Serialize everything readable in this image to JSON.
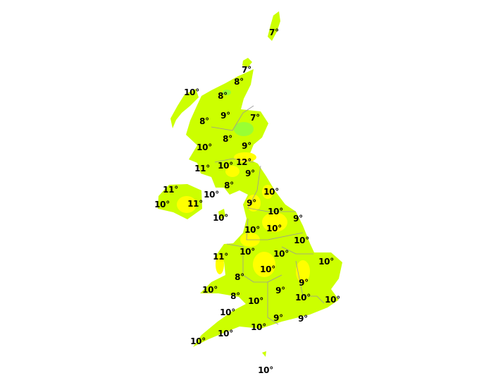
{
  "colors": {
    "base": "#ccff00",
    "warm": "#ffff00",
    "cool": "#99ff33",
    "border": "#999999",
    "background": "#ffffff"
  },
  "temperatures": [
    {
      "region": "shetland",
      "temp": "7°"
    },
    {
      "region": "orkney",
      "temp": "7°"
    },
    {
      "region": "caithness",
      "temp": "8°"
    },
    {
      "region": "western-isles",
      "temp": "10°"
    },
    {
      "region": "sutherland",
      "temp": "8°"
    },
    {
      "region": "highlands",
      "temp": "9°"
    },
    {
      "region": "aberdeenshire",
      "temp": "7°"
    },
    {
      "region": "skye",
      "temp": "8°"
    },
    {
      "region": "perthshire",
      "temp": "8°"
    },
    {
      "region": "fife",
      "temp": "9°"
    },
    {
      "region": "argyll",
      "temp": "10°"
    },
    {
      "region": "kintyre",
      "temp": "11°"
    },
    {
      "region": "glasgow",
      "temp": "10°"
    },
    {
      "region": "borders",
      "temp": "12°"
    },
    {
      "region": "northumberland",
      "temp": "9°"
    },
    {
      "region": "dumfries",
      "temp": "8°"
    },
    {
      "region": "antrim",
      "temp": "11°"
    },
    {
      "region": "cumbria-coast",
      "temp": "10°"
    },
    {
      "region": "north-yorkshire-coast",
      "temp": "10°"
    },
    {
      "region": "fermanagh",
      "temp": "10°"
    },
    {
      "region": "down",
      "temp": "11°"
    },
    {
      "region": "lake-district",
      "temp": "9°"
    },
    {
      "region": "north-yorkshire",
      "temp": "10°"
    },
    {
      "region": "isle-of-man",
      "temp": "10°"
    },
    {
      "region": "east-yorkshire",
      "temp": "9°"
    },
    {
      "region": "lancashire",
      "temp": "10°"
    },
    {
      "region": "south-yorkshire",
      "temp": "10°"
    },
    {
      "region": "lincolnshire",
      "temp": "10°"
    },
    {
      "region": "west-wales",
      "temp": "11°"
    },
    {
      "region": "north-wales-border",
      "temp": "10°"
    },
    {
      "region": "east-midlands",
      "temp": "10°"
    },
    {
      "region": "norfolk",
      "temp": "10°"
    },
    {
      "region": "west-midlands",
      "temp": "10°"
    },
    {
      "region": "mid-wales",
      "temp": "8°"
    },
    {
      "region": "essex",
      "temp": "9°"
    },
    {
      "region": "pembrokeshire",
      "temp": "10°"
    },
    {
      "region": "oxfordshire",
      "temp": "9°"
    },
    {
      "region": "south-wales",
      "temp": "8°"
    },
    {
      "region": "london",
      "temp": "10°"
    },
    {
      "region": "kent",
      "temp": "10°"
    },
    {
      "region": "bristol",
      "temp": "10°"
    },
    {
      "region": "north-devon",
      "temp": "10°"
    },
    {
      "region": "hampshire",
      "temp": "9°"
    },
    {
      "region": "sussex",
      "temp": "9°"
    },
    {
      "region": "dorset",
      "temp": "10°"
    },
    {
      "region": "south-devon",
      "temp": "10°"
    },
    {
      "region": "cornwall",
      "temp": "10°"
    },
    {
      "region": "scilly",
      "temp": "10°"
    }
  ]
}
